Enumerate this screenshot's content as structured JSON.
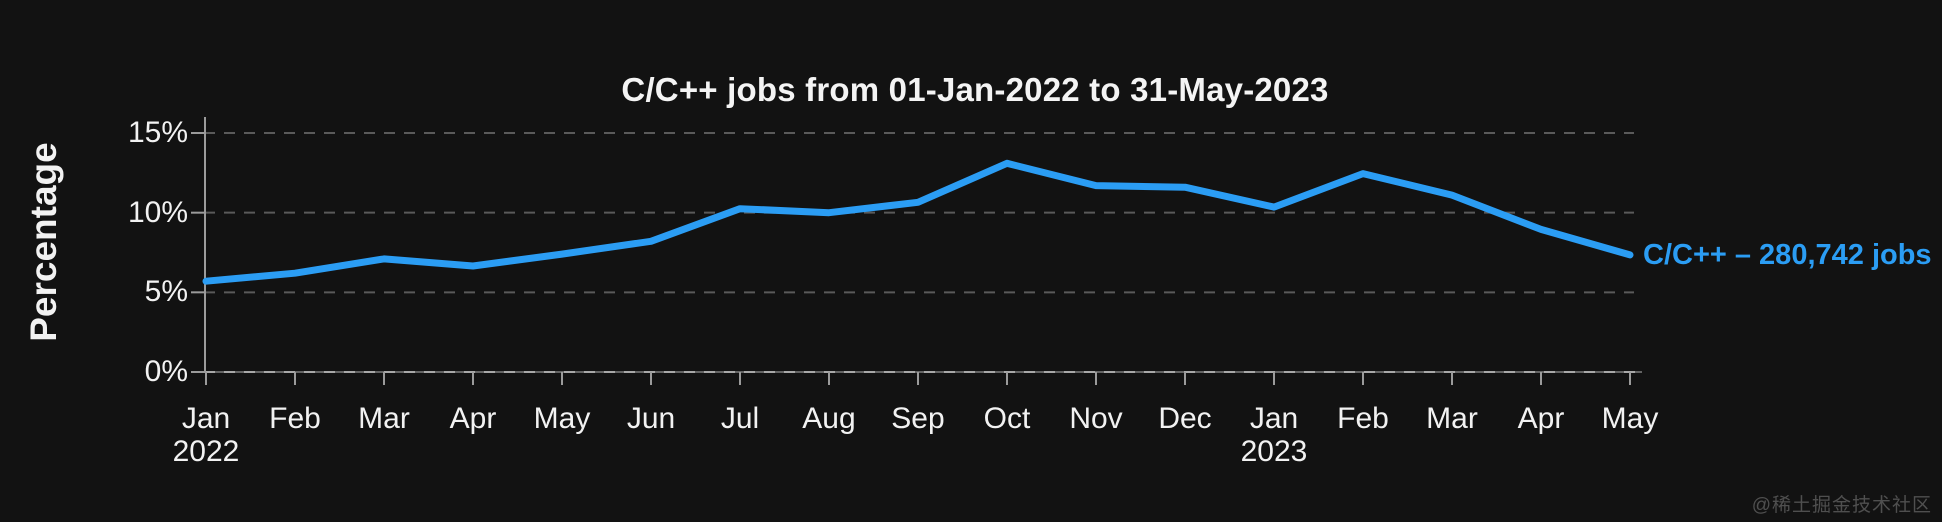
{
  "watermark": "@稀土掘金技术社区",
  "colors": {
    "background": "#121212",
    "line": "#2b9df4",
    "text": "#f2f2f2",
    "gridline": "#5a5a5a",
    "axis": "#9b9b9b",
    "zero_line_base": "#636363",
    "zero_line_dash": "#a8a8a8",
    "watermark": "#4f4f4f"
  },
  "chart_data": {
    "type": "line",
    "title": "C/C++ jobs from 01-Jan-2022 to 31-May-2023",
    "xlabel": "",
    "ylabel": "Percentage",
    "ylim": [
      0,
      15
    ],
    "ytick_values": [
      0,
      5,
      10,
      15
    ],
    "ytick_labels": [
      "0%",
      "5%",
      "10%",
      "15%"
    ],
    "x_labels": [
      "Jan",
      "Feb",
      "Mar",
      "Apr",
      "May",
      "Jun",
      "Jul",
      "Aug",
      "Sep",
      "Oct",
      "Nov",
      "Dec",
      "Jan",
      "Feb",
      "Mar",
      "Apr",
      "May"
    ],
    "x_year_sublabels": [
      {
        "index": 0,
        "year": "2022"
      },
      {
        "index": 12,
        "year": "2023"
      }
    ],
    "grid": "horizontal dashed gridlines, dark theme, no legend box",
    "legend": "inline label right of last point",
    "series": [
      {
        "name": "C/C++",
        "label": "C/C++ – 280,742 jobs",
        "jobs_count": "280,742",
        "color": "#2b9df4",
        "values": [
          5.7,
          6.2,
          7.1,
          6.65,
          7.4,
          8.2,
          10.25,
          10.0,
          10.65,
          13.1,
          11.7,
          11.6,
          10.35,
          12.45,
          11.1,
          8.95,
          7.35
        ]
      }
    ]
  }
}
